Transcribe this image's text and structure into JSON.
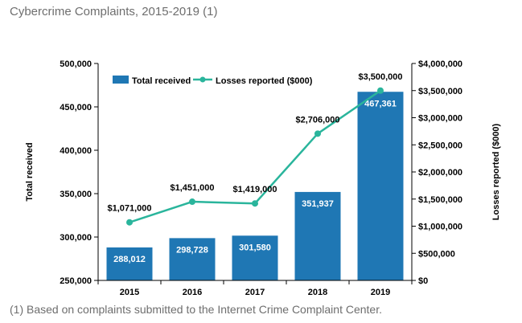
{
  "title": "Cybercrime Complaints, 2015-2019 (1)",
  "footnote": "(1) Based on complaints submitted to the Internet Crime Complaint Center.",
  "chart_data": {
    "type": "bar",
    "categories": [
      "2015",
      "2016",
      "2017",
      "2018",
      "2019"
    ],
    "series": [
      {
        "name": "Total received",
        "type": "bar",
        "axis": "left",
        "color": "#1f77b4",
        "values": [
          288012,
          298728,
          301580,
          351937,
          467361
        ],
        "labels": [
          "288,012",
          "298,728",
          "301,580",
          "351,937",
          "467,361"
        ]
      },
      {
        "name": "Losses reported ($000)",
        "type": "line",
        "axis": "right",
        "color": "#2ab59c",
        "values": [
          1071000,
          1451000,
          1419000,
          2706000,
          3500000
        ],
        "labels": [
          "$1,071,000",
          "$1,451,000",
          "$1,419,000",
          "$2,706,000",
          "$3,500,000"
        ]
      }
    ],
    "y_left": {
      "label": "Total received",
      "lim": [
        250000,
        500000
      ],
      "ticks": [
        250000,
        300000,
        350000,
        400000,
        450000,
        500000
      ],
      "tick_labels": [
        "250,000",
        "300,000",
        "350,000",
        "400,000",
        "450,000",
        "500,000"
      ]
    },
    "y_right": {
      "label": "Losses reported ($000)",
      "lim": [
        0,
        4000000
      ],
      "ticks": [
        0,
        500000,
        1000000,
        1500000,
        2000000,
        2500000,
        3000000,
        3500000,
        4000000
      ],
      "tick_labels": [
        "$0",
        "$500,000",
        "$1,000,000",
        "$1,500,000",
        "$2,000,000",
        "$2,500,000",
        "$3,000,000",
        "$3,500,000",
        "$4,000,000"
      ]
    },
    "legend": "top-left",
    "grid": false
  }
}
